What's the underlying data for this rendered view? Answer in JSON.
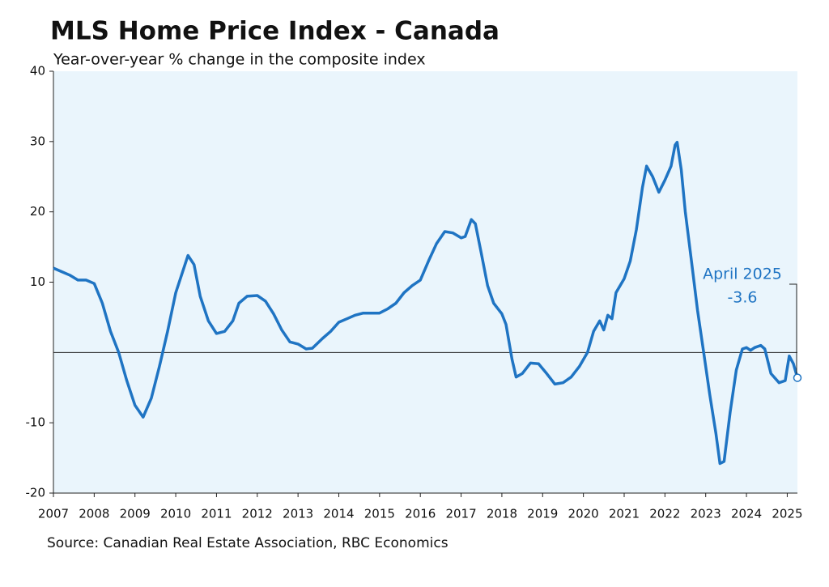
{
  "chart_data": {
    "type": "line",
    "title": "MLS Home Price Index - Canada",
    "subtitle": "Year-over-year % change in the composite index",
    "source": "Source: Canadian Real Estate Association, RBC Economics",
    "annotation": {
      "label": "April 2025",
      "value": -3.6
    },
    "x": [
      2007.0,
      2007.2,
      2007.4,
      2007.6,
      2007.8,
      2008.0,
      2008.2,
      2008.4,
      2008.6,
      2008.8,
      2009.0,
      2009.2,
      2009.4,
      2009.6,
      2009.8,
      2010.0,
      2010.2,
      2010.3,
      2010.45,
      2010.6,
      2010.8,
      2011.0,
      2011.2,
      2011.4,
      2011.55,
      2011.75,
      2012.0,
      2012.2,
      2012.4,
      2012.6,
      2012.8,
      2013.0,
      2013.2,
      2013.35,
      2013.6,
      2013.8,
      2014.0,
      2014.2,
      2014.4,
      2014.6,
      2014.8,
      2015.0,
      2015.2,
      2015.4,
      2015.6,
      2015.8,
      2016.0,
      2016.2,
      2016.4,
      2016.6,
      2016.8,
      2017.0,
      2017.1,
      2017.25,
      2017.35,
      2017.5,
      2017.65,
      2017.8,
      2018.0,
      2018.1,
      2018.25,
      2018.35,
      2018.5,
      2018.7,
      2018.9,
      2019.1,
      2019.3,
      2019.5,
      2019.7,
      2019.9,
      2020.1,
      2020.25,
      2020.4,
      2020.5,
      2020.6,
      2020.7,
      2020.8,
      2021.0,
      2021.15,
      2021.3,
      2021.45,
      2021.55,
      2021.7,
      2021.85,
      2022.0,
      2022.15,
      2022.25,
      2022.3,
      2022.4,
      2022.5,
      2022.65,
      2022.8,
      2022.95,
      2023.1,
      2023.25,
      2023.35,
      2023.45,
      2023.6,
      2023.75,
      2023.9,
      2024.0,
      2024.1,
      2024.2,
      2024.35,
      2024.45,
      2024.6,
      2024.8,
      2024.95,
      2025.05,
      2025.15,
      2025.25
    ],
    "series": [
      {
        "color": "#1f74c3",
        "values": [
          12,
          11.5,
          11,
          10.3,
          10.3,
          9.8,
          7,
          3,
          0,
          -4,
          -7.5,
          -9.2,
          -6.5,
          -2,
          3,
          8.5,
          12,
          13.8,
          12.5,
          8,
          4.5,
          2.7,
          3,
          4.5,
          7,
          8,
          8.1,
          7.3,
          5.5,
          3.2,
          1.5,
          1.2,
          0.5,
          0.6,
          2,
          3,
          4.3,
          4.8,
          5.3,
          5.6,
          5.6,
          5.6,
          6.2,
          7,
          8.5,
          9.5,
          10.3,
          13,
          15.5,
          17.2,
          17,
          16.3,
          16.5,
          18.9,
          18.3,
          14,
          9.5,
          7,
          5.5,
          4,
          -1,
          -3.5,
          -3,
          -1.5,
          -1.6,
          -3,
          -4.5,
          -4.3,
          -3.5,
          -2,
          0,
          3,
          4.5,
          3.2,
          5.3,
          4.8,
          8.5,
          10.5,
          13,
          17.5,
          23.5,
          26.5,
          25,
          22.8,
          24.5,
          26.5,
          29.5,
          29.9,
          26,
          20,
          13,
          6,
          0,
          -6,
          -11.5,
          -15.8,
          -15.5,
          -8.5,
          -2.5,
          0.5,
          0.7,
          0.3,
          0.7,
          1,
          0.5,
          -3,
          -4.3,
          -4,
          -0.5,
          -1.6,
          -3.6
        ]
      }
    ],
    "xlim": [
      2007,
      2025.25
    ],
    "xticks": [
      2007,
      2008,
      2009,
      2010,
      2011,
      2012,
      2013,
      2014,
      2015,
      2016,
      2017,
      2018,
      2019,
      2020,
      2021,
      2022,
      2023,
      2024,
      2025
    ],
    "ylim": [
      -20,
      40
    ],
    "yticks": [
      -20,
      -10,
      10,
      20,
      30,
      40
    ],
    "plot_background": "#eaf5fc"
  }
}
